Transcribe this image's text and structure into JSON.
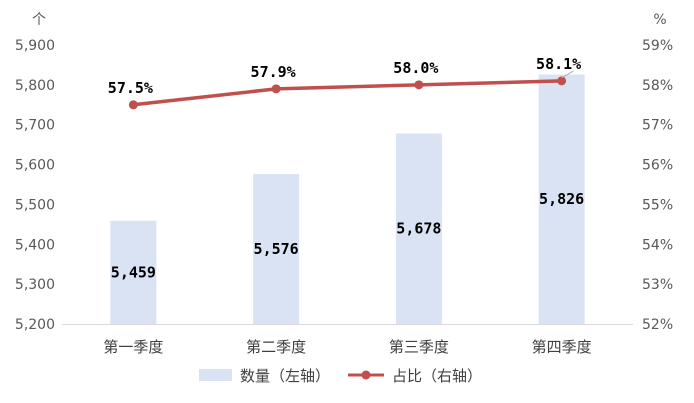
{
  "chart_data": {
    "type": "bar+line",
    "categories": [
      "第一季度",
      "第二季度",
      "第三季度",
      "第四季度"
    ],
    "series": [
      {
        "name": "数量（左轴）",
        "type": "bar",
        "axis": "left",
        "values": [
          5459,
          5576,
          5678,
          5826
        ],
        "labels": [
          "5,459",
          "5,576",
          "5,678",
          "5,826"
        ],
        "color": "#dae3f3"
      },
      {
        "name": "占比（右轴）",
        "type": "line",
        "axis": "right",
        "values": [
          57.5,
          57.9,
          58.0,
          58.1
        ],
        "labels": [
          "57.5%",
          "57.9%",
          "58.0%",
          "58.1%"
        ],
        "color": "#c0504d"
      }
    ],
    "y_left": {
      "unit": "个",
      "min": 5200,
      "max": 5900,
      "ticks": [
        5200,
        5300,
        5400,
        5500,
        5600,
        5700,
        5800,
        5900
      ],
      "tick_labels": [
        "5,200",
        "5,300",
        "5,400",
        "5,500",
        "5,600",
        "5,700",
        "5,800",
        "5,900"
      ]
    },
    "y_right": {
      "unit": "%",
      "min": 52,
      "max": 59,
      "ticks": [
        52,
        53,
        54,
        55,
        56,
        57,
        58,
        59
      ],
      "tick_labels": [
        "52%",
        "53%",
        "54%",
        "55%",
        "56%",
        "57%",
        "58%",
        "59%"
      ]
    },
    "grid": false,
    "legend": "bottom"
  }
}
